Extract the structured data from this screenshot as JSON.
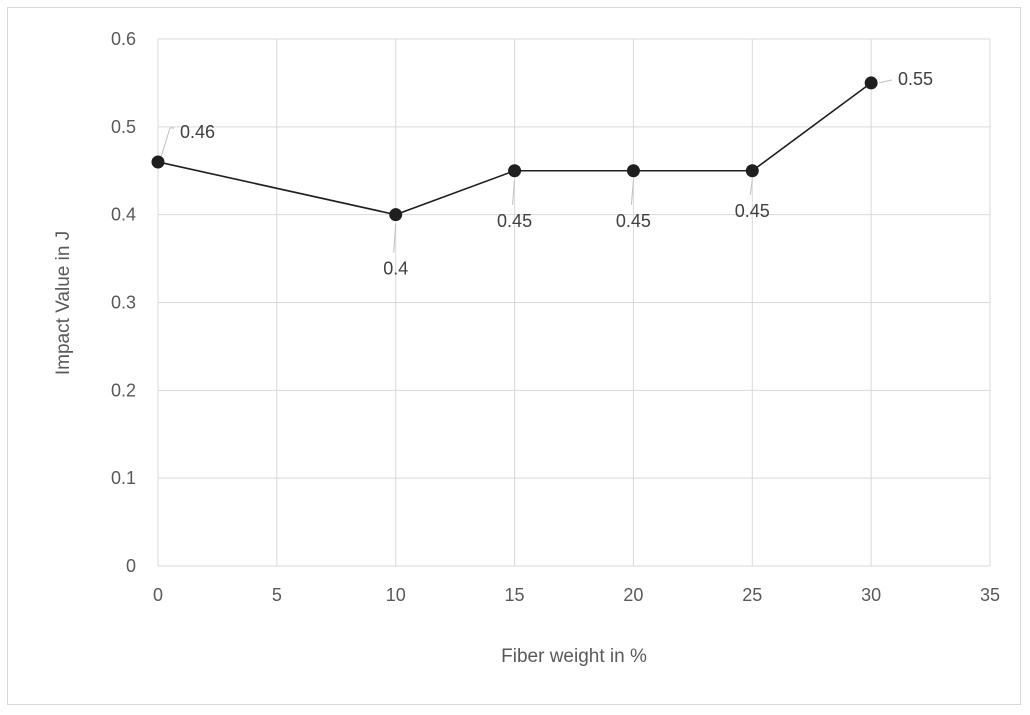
{
  "chart_data": {
    "type": "line",
    "xlabel": "Fiber weight in %",
    "ylabel": "Impact Value in J",
    "xlim": [
      0,
      35
    ],
    "ylim": [
      0,
      0.6
    ],
    "x_ticks": [
      0,
      5,
      10,
      15,
      20,
      25,
      30,
      35
    ],
    "y_ticks": [
      0,
      0.1,
      0.2,
      0.3,
      0.4,
      0.5,
      0.6
    ],
    "grid": true,
    "legend": "none",
    "series": [
      {
        "x": [
          0,
          10,
          15,
          20,
          25,
          30
        ],
        "values": [
          0.46,
          0.4,
          0.45,
          0.45,
          0.45,
          0.55
        ],
        "labels": [
          "0.46",
          "0.4",
          "0.45",
          "0.45",
          "0.45",
          "0.55"
        ],
        "color": "#1f1f1f"
      }
    ]
  }
}
